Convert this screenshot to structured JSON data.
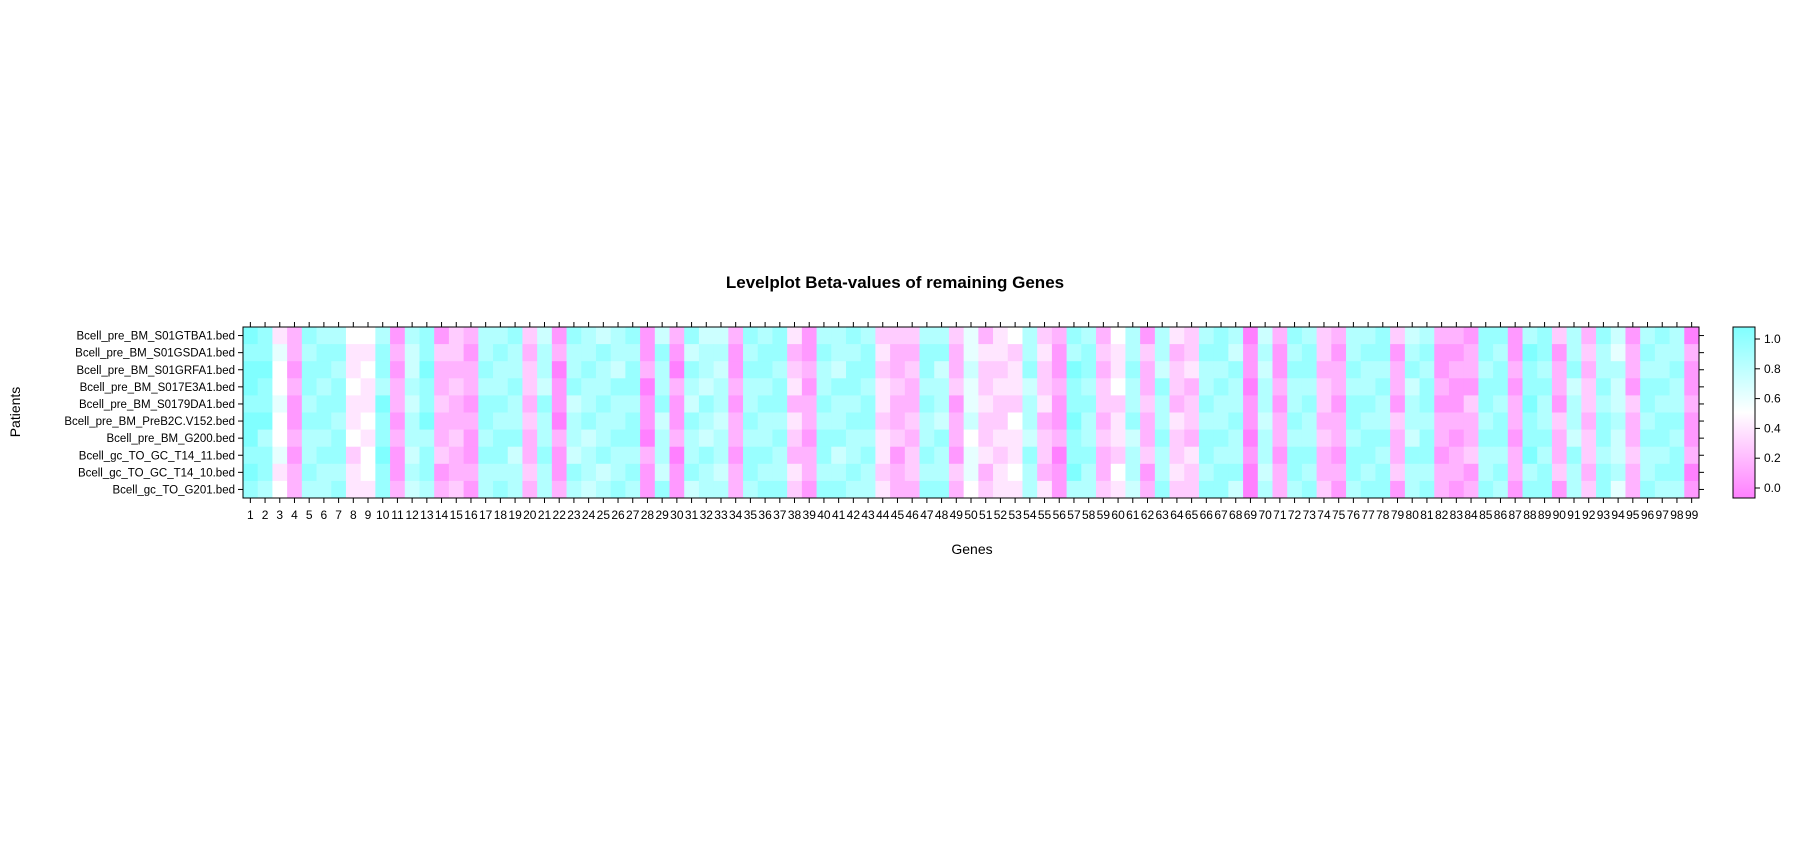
{
  "chart_data": {
    "type": "heatmap",
    "title": "Levelplot Beta-values of remaining Genes",
    "xlabel": "Genes",
    "ylabel": "Patients",
    "x_ticks": [
      "1",
      "2",
      "3",
      "4",
      "5",
      "6",
      "7",
      "8",
      "9",
      "10",
      "11",
      "12",
      "13",
      "14",
      "15",
      "16",
      "17",
      "18",
      "19",
      "20",
      "21",
      "22",
      "23",
      "24",
      "25",
      "26",
      "27",
      "28",
      "29",
      "30",
      "31",
      "32",
      "33",
      "34",
      "35",
      "36",
      "37",
      "38",
      "39",
      "40",
      "41",
      "42",
      "43",
      "44",
      "45",
      "46",
      "47",
      "48",
      "49",
      "50",
      "51",
      "52",
      "53",
      "54",
      "55",
      "56",
      "57",
      "58",
      "59",
      "60",
      "61",
      "62",
      "63",
      "64",
      "65",
      "66",
      "67",
      "68",
      "69",
      "70",
      "71",
      "72",
      "73",
      "74",
      "75",
      "76",
      "77",
      "78",
      "79",
      "80",
      "81",
      "82",
      "83",
      "84",
      "85",
      "86",
      "87",
      "88",
      "89",
      "90",
      "91",
      "92",
      "93",
      "94",
      "95",
      "96",
      "97",
      "98",
      "99"
    ],
    "patients": [
      "Bcell_pre_BM_S01GTBA1.bed",
      "Bcell_pre_BM_S01GSDA1.bed",
      "Bcell_pre_BM_S01GRFA1.bed",
      "Bcell_pre_BM_S017E3A1.bed",
      "Bcell_pre_BM_S0179DA1.bed",
      "Bcell_pre_BM_PreB2C.V152.bed",
      "Bcell_pre_BM_G200.bed",
      "Bcell_gc_TO_GC_T14_11.bed",
      "Bcell_gc_TO_GC_T14_10.bed",
      "Bcell_gc_TO_G201.bed"
    ],
    "colorbar": {
      "min": 0.0,
      "max": 1.0,
      "low_color": "#FF80FF",
      "mid_color": "#FFFFFF",
      "high_color": "#80FFFF",
      "ticks": [
        "0.0",
        "0.2",
        "0.4",
        "0.6",
        "0.8",
        "1.0"
      ]
    },
    "gene_base_values": [
      0.95,
      0.9,
      0.5,
      0.15,
      0.85,
      0.85,
      0.85,
      0.4,
      0.45,
      0.9,
      0.15,
      0.75,
      0.9,
      0.2,
      0.25,
      0.15,
      0.85,
      0.85,
      0.8,
      0.25,
      0.8,
      0.1,
      0.8,
      0.8,
      0.8,
      0.8,
      0.85,
      0.1,
      0.8,
      0.1,
      0.8,
      0.8,
      0.75,
      0.15,
      0.85,
      0.85,
      0.85,
      0.3,
      0.15,
      0.85,
      0.8,
      0.85,
      0.85,
      0.35,
      0.2,
      0.25,
      0.85,
      0.8,
      0.2,
      0.6,
      0.3,
      0.35,
      0.4,
      0.8,
      0.3,
      0.1,
      0.9,
      0.85,
      0.25,
      0.4,
      0.8,
      0.2,
      0.8,
      0.3,
      0.3,
      0.85,
      0.85,
      0.8,
      0.05,
      0.75,
      0.15,
      0.85,
      0.85,
      0.25,
      0.15,
      0.85,
      0.85,
      0.85,
      0.2,
      0.8,
      0.85,
      0.15,
      0.15,
      0.2,
      0.85,
      0.85,
      0.15,
      0.9,
      0.85,
      0.2,
      0.8,
      0.25,
      0.85,
      0.7,
      0.2,
      0.85,
      0.85,
      0.85,
      0.1
    ],
    "values": []
  }
}
